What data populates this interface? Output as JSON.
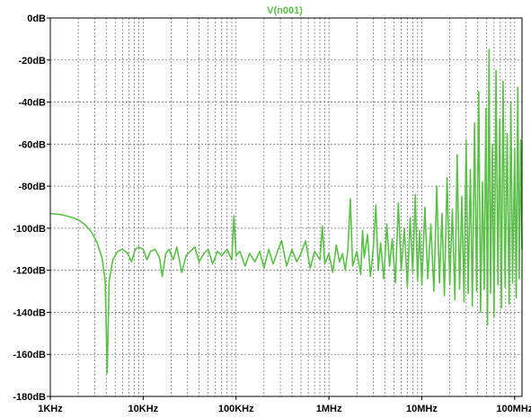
{
  "chart_data": {
    "type": "line",
    "title": "V(n001)",
    "x_scale": "log",
    "x_range_hz": [
      1000,
      120000000
    ],
    "y_range_db": [
      -180,
      0
    ],
    "grid": true,
    "x_ticks": [
      {
        "hz": 1000,
        "label": "1KHz"
      },
      {
        "hz": 10000,
        "label": "10KHz"
      },
      {
        "hz": 100000,
        "label": "100KHz"
      },
      {
        "hz": 1000000,
        "label": "1MHz"
      },
      {
        "hz": 10000000,
        "label": "10MHz"
      },
      {
        "hz": 100000000,
        "label": "100MHz"
      }
    ],
    "y_ticks": [
      {
        "db": 0,
        "label": "0dB"
      },
      {
        "db": -20,
        "label": "-20dB"
      },
      {
        "db": -40,
        "label": "-40dB"
      },
      {
        "db": -60,
        "label": "-60dB"
      },
      {
        "db": -80,
        "label": "-80dB"
      },
      {
        "db": -100,
        "label": "-100dB"
      },
      {
        "db": -120,
        "label": "-120dB"
      },
      {
        "db": -140,
        "label": "-140dB"
      },
      {
        "db": -160,
        "label": "-160dB"
      },
      {
        "db": -180,
        "label": "-180dB"
      }
    ],
    "series": [
      {
        "name": "V(n001)",
        "color": "#5cbf4a",
        "points": [
          [
            1000,
            -93
          ],
          [
            1300,
            -93.5
          ],
          [
            1600,
            -94.5
          ],
          [
            2000,
            -96
          ],
          [
            2400,
            -98.5
          ],
          [
            2800,
            -102
          ],
          [
            3200,
            -107
          ],
          [
            3600,
            -114
          ],
          [
            3900,
            -125
          ],
          [
            4100,
            -169
          ],
          [
            4300,
            -125
          ],
          [
            4700,
            -115
          ],
          [
            5300,
            -111
          ],
          [
            6000,
            -110
          ],
          [
            6800,
            -112
          ],
          [
            7500,
            -116
          ],
          [
            8200,
            -110
          ],
          [
            9000,
            -109
          ],
          [
            10000,
            -110
          ],
          [
            11000,
            -115
          ],
          [
            12000,
            -111
          ],
          [
            13500,
            -110
          ],
          [
            15000,
            -114
          ],
          [
            16000,
            -123
          ],
          [
            17500,
            -112
          ],
          [
            19000,
            -110
          ],
          [
            21000,
            -115
          ],
          [
            23000,
            -109
          ],
          [
            26000,
            -121
          ],
          [
            29000,
            -113
          ],
          [
            32000,
            -111
          ],
          [
            36000,
            -109
          ],
          [
            40000,
            -116
          ],
          [
            45000,
            -112
          ],
          [
            50000,
            -110
          ],
          [
            56000,
            -117
          ],
          [
            63000,
            -111
          ],
          [
            70000,
            -113
          ],
          [
            80000,
            -110
          ],
          [
            90000,
            -115
          ],
          [
            95000,
            -94
          ],
          [
            100000,
            -113
          ],
          [
            110000,
            -111
          ],
          [
            125000,
            -118
          ],
          [
            140000,
            -112
          ],
          [
            160000,
            -116
          ],
          [
            180000,
            -111
          ],
          [
            200000,
            -119
          ],
          [
            225000,
            -110
          ],
          [
            250000,
            -117
          ],
          [
            280000,
            -111
          ],
          [
            310000,
            -106
          ],
          [
            350000,
            -118
          ],
          [
            400000,
            -110
          ],
          [
            450000,
            -116
          ],
          [
            500000,
            -112
          ],
          [
            560000,
            -106
          ],
          [
            630000,
            -119
          ],
          [
            700000,
            -111
          ],
          [
            800000,
            -115
          ],
          [
            850000,
            -99
          ],
          [
            900000,
            -117
          ],
          [
            1000000,
            -112
          ],
          [
            1100000,
            -121
          ],
          [
            1200000,
            -108
          ],
          [
            1300000,
            -116
          ],
          [
            1400000,
            -112
          ],
          [
            1500000,
            -120
          ],
          [
            1600000,
            -110
          ],
          [
            1700000,
            -86
          ],
          [
            1800000,
            -118
          ],
          [
            2000000,
            -111
          ],
          [
            2200000,
            -122
          ],
          [
            2300000,
            -101
          ],
          [
            2400000,
            -114
          ],
          [
            2600000,
            -103
          ],
          [
            2800000,
            -123
          ],
          [
            3000000,
            -110
          ],
          [
            3200000,
            -89
          ],
          [
            3400000,
            -120
          ],
          [
            3600000,
            -107
          ],
          [
            3900000,
            -124
          ],
          [
            4200000,
            -98
          ],
          [
            4500000,
            -118
          ],
          [
            4800000,
            -105
          ],
          [
            5200000,
            -126
          ],
          [
            5600000,
            -88
          ],
          [
            6000000,
            -120
          ],
          [
            6500000,
            -100
          ],
          [
            7000000,
            -128
          ],
          [
            7500000,
            -95
          ],
          [
            8000000,
            -121
          ],
          [
            8500000,
            -84
          ],
          [
            9000000,
            -125
          ],
          [
            9500000,
            -101
          ],
          [
            10000000,
            -127
          ],
          [
            10800000,
            -90
          ],
          [
            11600000,
            -124
          ],
          [
            12500000,
            -98
          ],
          [
            13500000,
            -130
          ],
          [
            14500000,
            -80
          ],
          [
            15500000,
            -126
          ],
          [
            16500000,
            -93
          ],
          [
            17500000,
            -132
          ],
          [
            18700000,
            -76
          ],
          [
            20000000,
            -127
          ],
          [
            21300000,
            -91
          ],
          [
            22700000,
            -134
          ],
          [
            24000000,
            -65
          ],
          [
            25500000,
            -129
          ],
          [
            27000000,
            -85
          ],
          [
            28500000,
            -135
          ],
          [
            30000000,
            -58
          ],
          [
            31600000,
            -131
          ],
          [
            33300000,
            -72
          ],
          [
            35000000,
            -137
          ],
          [
            37000000,
            -50
          ],
          [
            39000000,
            -130
          ],
          [
            41000000,
            -35
          ],
          [
            43000000,
            -140
          ],
          [
            45000000,
            -78
          ],
          [
            47000000,
            -129
          ],
          [
            49000000,
            -43
          ],
          [
            51000000,
            -146
          ],
          [
            53000000,
            -15
          ],
          [
            55000000,
            -131
          ],
          [
            57500000,
            -60
          ],
          [
            60000000,
            -142
          ],
          [
            63000000,
            -25
          ],
          [
            66000000,
            -127
          ],
          [
            69000000,
            -48
          ],
          [
            72000000,
            -138
          ],
          [
            75000000,
            -30
          ],
          [
            79000000,
            -128
          ],
          [
            83000000,
            -55
          ],
          [
            87000000,
            -136
          ],
          [
            91000000,
            -40
          ],
          [
            95000000,
            -126
          ],
          [
            100000000,
            -62
          ],
          [
            104000000,
            -133
          ],
          [
            108000000,
            -33
          ],
          [
            112000000,
            -124
          ],
          [
            116000000,
            -58
          ],
          [
            120000000,
            -110
          ]
        ]
      }
    ]
  }
}
